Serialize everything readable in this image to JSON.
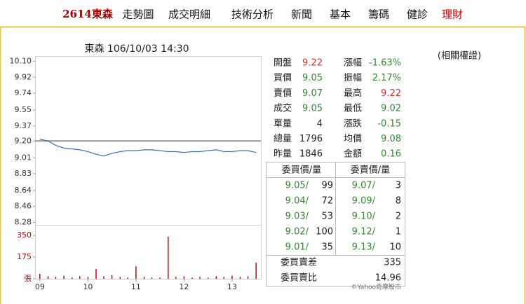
{
  "nav": [
    "2614東森",
    "走勢圖",
    "成交明細",
    "技術分析",
    "新聞",
    "基本",
    "籌碼",
    "健診",
    "理財"
  ],
  "related": "(相關權證)",
  "chart_data": [
    {
      "type": "line",
      "title": "東森 106/10/03 14:30",
      "color": "#3a6cb5",
      "reference": 9.2,
      "reference_color": "#aaaaaa",
      "x": [
        9,
        9.17,
        9.33,
        9.5,
        9.67,
        9.83,
        10,
        10.17,
        10.33,
        10.5,
        10.67,
        10.83,
        11,
        11.17,
        11.33,
        11.5,
        11.67,
        11.83,
        12,
        12.17,
        12.33,
        12.5,
        12.67,
        12.83,
        13,
        13.17,
        13.33,
        13.5
      ],
      "values": [
        9.22,
        9.2,
        9.15,
        9.12,
        9.11,
        9.1,
        9.08,
        9.05,
        9.03,
        9.06,
        9.08,
        9.09,
        9.09,
        9.1,
        9.1,
        9.09,
        9.08,
        9.08,
        9.07,
        9.08,
        9.08,
        9.09,
        9.1,
        9.08,
        9.08,
        9.09,
        9.09,
        9.07
      ],
      "xlim": [
        8.9,
        13.6
      ],
      "ylim": [
        8.26,
        10.16
      ],
      "yticks": [
        {
          "value": 10.1,
          "label": "10.10"
        },
        9.92,
        9.74,
        9.55,
        9.37,
        {
          "value": 9.2,
          "label": "9.20"
        },
        9.01,
        8.83,
        8.64,
        8.46,
        8.28
      ]
    },
    {
      "type": "bar",
      "color": "#cc0000",
      "x": [
        9,
        9.17,
        9.33,
        9.5,
        9.67,
        9.83,
        10,
        10.17,
        10.33,
        10.5,
        10.67,
        10.83,
        11,
        11.17,
        11.33,
        11.5,
        11.67,
        11.83,
        12,
        12.17,
        12.33,
        12.5,
        12.67,
        12.83,
        13,
        13.17,
        13.33,
        13.5
      ],
      "values": [
        40,
        20,
        15,
        25,
        10,
        20,
        15,
        80,
        20,
        30,
        15,
        10,
        100,
        15,
        10,
        10,
        340,
        15,
        20,
        10,
        15,
        10,
        20,
        15,
        25,
        15,
        20,
        130
      ],
      "xlim": [
        8.9,
        13.6
      ],
      "ylim": [
        0,
        430
      ],
      "xticks": [
        {
          "value": 9,
          "label": "09"
        },
        10,
        11,
        12,
        13
      ],
      "yticks": [
        350,
        175,
        {
          "value": 0,
          "label": "張"
        }
      ]
    }
  ],
  "quote": {
    "rows": [
      {
        "l1": "開盤",
        "v1": "9.22",
        "c1": "#e03030",
        "l2": "漲幅",
        "v2": "-1.63%",
        "c2": "#2e8b2e"
      },
      {
        "l1": "買價",
        "v1": "9.05",
        "c1": "#2e8b2e",
        "l2": "振幅",
        "v2": "2.17%",
        "c2": "#2e8b2e"
      },
      {
        "l1": "賣價",
        "v1": "9.07",
        "c1": "#2e8b2e",
        "l2": "最高",
        "v2": "9.22",
        "c2": "#e03030"
      },
      {
        "l1": "成交",
        "v1": "9.05",
        "c1": "#2e8b2e",
        "l2": "最低",
        "v2": "9.02",
        "c2": "#2e8b2e"
      },
      {
        "l1": "單量",
        "v1": "4",
        "c1": "#222222",
        "l2": "漲跌",
        "v2": "-0.15",
        "c2": "#2e8b2e"
      },
      {
        "l1": "總量",
        "v1": "1796",
        "c1": "#222222",
        "l2": "均價",
        "v2": "9.08",
        "c2": "#2e8b2e"
      },
      {
        "l1": "昨量",
        "v1": "1846",
        "c1": "#222222",
        "l2": "金額",
        "v2": "0.16",
        "c2": "#2e8b2e"
      }
    ]
  },
  "book": {
    "headers": [
      "委買價/量",
      "委賣價/量"
    ],
    "price_color": "#2e8b2e",
    "rows": [
      [
        "9.05/",
        "99",
        "9.07/",
        "3"
      ],
      [
        "9.04/",
        "72",
        "9.09/",
        "8"
      ],
      [
        "9.03/",
        "53",
        "9.10/",
        "2"
      ],
      [
        "9.02/",
        "100",
        "9.12/",
        "1"
      ],
      [
        "9.01/",
        "35",
        "9.13/",
        "10"
      ]
    ],
    "summary": [
      {
        "label": "委買賣差",
        "value": "335"
      },
      {
        "label": "委買賣比",
        "value": "14.96"
      }
    ]
  },
  "watermark": "©Yahoo奇摩股市"
}
